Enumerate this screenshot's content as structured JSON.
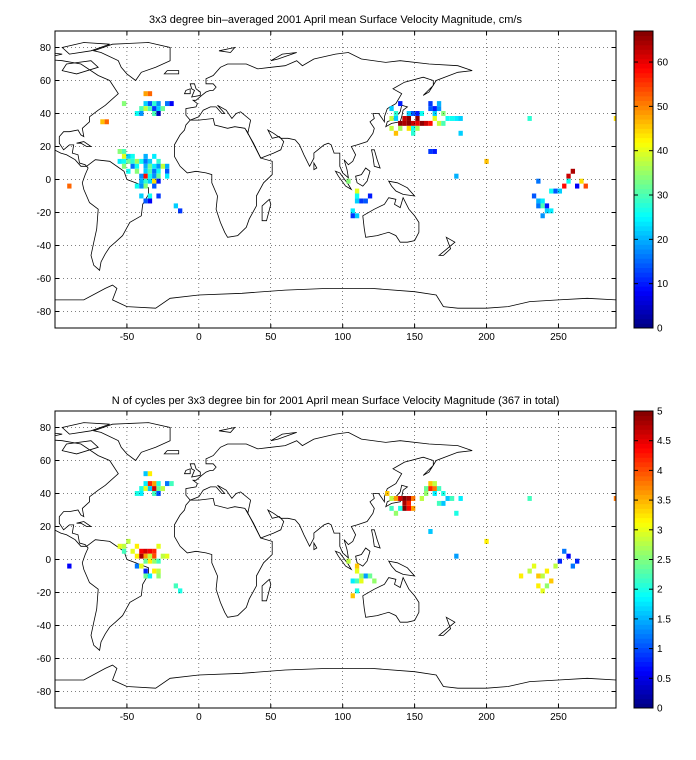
{
  "chart_data": [
    {
      "type": "heatmap",
      "title": "3x3 degree bin–averaged 2001 April mean Surface Velocity Magnitude, cm/s",
      "xlabel": "",
      "ylabel": "",
      "xlim": [
        -100,
        290
      ],
      "ylim": [
        -90,
        90
      ],
      "xticks": [
        -50,
        0,
        50,
        100,
        150,
        200,
        250
      ],
      "yticks": [
        -80,
        -60,
        -40,
        -20,
        0,
        20,
        40,
        60,
        80
      ],
      "grid": true,
      "colormap": "jet",
      "colorbar": {
        "min": 0,
        "max": 67,
        "ticks": [
          0,
          10,
          20,
          30,
          40,
          50,
          60
        ]
      },
      "cells": [
        [
          -90,
          -4,
          52
        ],
        [
          -67,
          35,
          46
        ],
        [
          -64,
          35,
          52
        ],
        [
          -52,
          46,
          34
        ],
        [
          -37,
          52,
          48
        ],
        [
          -34,
          52,
          52
        ],
        [
          -37,
          46,
          22
        ],
        [
          -34,
          46,
          14
        ],
        [
          -31,
          46,
          28
        ],
        [
          -28,
          46,
          18
        ],
        [
          -22,
          46,
          16
        ],
        [
          -19,
          46,
          8
        ],
        [
          -40,
          43,
          30
        ],
        [
          -37,
          43,
          38
        ],
        [
          -34,
          43,
          30
        ],
        [
          -31,
          43,
          12
        ],
        [
          -28,
          43,
          22
        ],
        [
          -25,
          43,
          32
        ],
        [
          -43,
          40,
          26
        ],
        [
          -40,
          40,
          18
        ],
        [
          -31,
          40,
          30
        ],
        [
          -28,
          40,
          4
        ],
        [
          -55,
          17,
          34
        ],
        [
          -52,
          17,
          30
        ],
        [
          -52,
          14,
          40
        ],
        [
          -49,
          14,
          22
        ],
        [
          -46,
          14,
          26
        ],
        [
          -37,
          14,
          20
        ],
        [
          -31,
          14,
          24
        ],
        [
          -55,
          11,
          24
        ],
        [
          -52,
          11,
          26
        ],
        [
          -49,
          11,
          32
        ],
        [
          -46,
          11,
          28
        ],
        [
          -43,
          11,
          36
        ],
        [
          -40,
          11,
          26
        ],
        [
          -37,
          11,
          16
        ],
        [
          -34,
          11,
          22
        ],
        [
          -28,
          11,
          28
        ],
        [
          -52,
          8,
          34
        ],
        [
          -46,
          8,
          16
        ],
        [
          -43,
          8,
          26
        ],
        [
          -37,
          8,
          20
        ],
        [
          -34,
          8,
          32
        ],
        [
          -31,
          8,
          24
        ],
        [
          -28,
          8,
          18
        ],
        [
          -25,
          8,
          38
        ],
        [
          -22,
          8,
          20
        ],
        [
          -49,
          5,
          26
        ],
        [
          -43,
          5,
          34
        ],
        [
          -37,
          5,
          22
        ],
        [
          -34,
          5,
          30
        ],
        [
          -31,
          5,
          16
        ],
        [
          -28,
          5,
          26
        ],
        [
          -22,
          5,
          14
        ],
        [
          -40,
          2,
          18
        ],
        [
          -37,
          2,
          58
        ],
        [
          -34,
          2,
          26
        ],
        [
          -31,
          2,
          18
        ],
        [
          -28,
          2,
          32
        ],
        [
          -22,
          2,
          24
        ],
        [
          -40,
          -1,
          20
        ],
        [
          -37,
          -1,
          28
        ],
        [
          -34,
          -1,
          22
        ],
        [
          -31,
          -1,
          44
        ],
        [
          -28,
          -1,
          10
        ],
        [
          -43,
          -4,
          26
        ],
        [
          -40,
          -4,
          18
        ],
        [
          -37,
          -4,
          34
        ],
        [
          -31,
          -4,
          14
        ],
        [
          -40,
          -10,
          22
        ],
        [
          -34,
          -10,
          26
        ],
        [
          -28,
          -10,
          12
        ],
        [
          -37,
          -13,
          14
        ],
        [
          -34,
          -13,
          8
        ],
        [
          -16,
          -16,
          22
        ],
        [
          -13,
          -19,
          12
        ],
        [
          134,
          43,
          22
        ],
        [
          140,
          46,
          10
        ],
        [
          137,
          40,
          28
        ],
        [
          143,
          37,
          34
        ],
        [
          146,
          40,
          22
        ],
        [
          149,
          40,
          14
        ],
        [
          152,
          40,
          10
        ],
        [
          155,
          40,
          26
        ],
        [
          161,
          43,
          14
        ],
        [
          164,
          43,
          10
        ],
        [
          167,
          43,
          18
        ],
        [
          161,
          46,
          12
        ],
        [
          167,
          46,
          20
        ],
        [
          164,
          40,
          22
        ],
        [
          170,
          40,
          34
        ],
        [
          173,
          37,
          26
        ],
        [
          134,
          37,
          38
        ],
        [
          137,
          37,
          22
        ],
        [
          140,
          34,
          66
        ],
        [
          143,
          34,
          64
        ],
        [
          146,
          34,
          66
        ],
        [
          149,
          34,
          62
        ],
        [
          152,
          34,
          60
        ],
        [
          155,
          34,
          66
        ],
        [
          158,
          34,
          62
        ],
        [
          161,
          34,
          58
        ],
        [
          143,
          37,
          62
        ],
        [
          146,
          37,
          66
        ],
        [
          152,
          37,
          66
        ],
        [
          164,
          37,
          40
        ],
        [
          167,
          34,
          38
        ],
        [
          170,
          34,
          30
        ],
        [
          176,
          37,
          26
        ],
        [
          179,
          37,
          24
        ],
        [
          182,
          37,
          22
        ],
        [
          140,
          31,
          36
        ],
        [
          146,
          31,
          44
        ],
        [
          149,
          31,
          26
        ],
        [
          152,
          31,
          36
        ],
        [
          149,
          28,
          28
        ],
        [
          137,
          28,
          46
        ],
        [
          134,
          31,
          38
        ],
        [
          182,
          28,
          22
        ],
        [
          161,
          17,
          12
        ],
        [
          164,
          17,
          10
        ],
        [
          200,
          11,
          46
        ],
        [
          179,
          2,
          20
        ],
        [
          110,
          -7,
          40
        ],
        [
          110,
          -10,
          26
        ],
        [
          110,
          -13,
          22
        ],
        [
          113,
          -13,
          12
        ],
        [
          116,
          -13,
          14
        ],
        [
          119,
          -10,
          10
        ],
        [
          107,
          -19,
          24
        ],
        [
          110,
          -22,
          22
        ],
        [
          107,
          -22,
          12
        ],
        [
          104,
          -1,
          34
        ],
        [
          233,
          -10,
          14
        ],
        [
          236,
          -13,
          20
        ],
        [
          239,
          -13,
          24
        ],
        [
          236,
          -16,
          16
        ],
        [
          239,
          -16,
          30
        ],
        [
          242,
          -16,
          10
        ],
        [
          245,
          -19,
          24
        ],
        [
          242,
          -19,
          22
        ],
        [
          239,
          -22,
          18
        ],
        [
          245,
          -7,
          26
        ],
        [
          248,
          -7,
          14
        ],
        [
          251,
          -7,
          22
        ],
        [
          254,
          -4,
          58
        ],
        [
          257,
          2,
          62
        ],
        [
          260,
          5,
          64
        ],
        [
          257,
          -1,
          26
        ],
        [
          263,
          -4,
          8
        ],
        [
          266,
          -1,
          44
        ],
        [
          269,
          -4,
          54
        ],
        [
          236,
          -1,
          16
        ],
        [
          230,
          37,
          28
        ],
        [
          290,
          37,
          44
        ]
      ]
    },
    {
      "type": "heatmap",
      "title": "N of cycles per 3x3 degree bin for 2001 April mean Surface Velocity Magnitude (367 in total)",
      "xlabel": "",
      "ylabel": "",
      "xlim": [
        -100,
        290
      ],
      "ylim": [
        -90,
        90
      ],
      "xticks": [
        -50,
        0,
        50,
        100,
        150,
        200,
        250
      ],
      "yticks": [
        -80,
        -60,
        -40,
        -20,
        0,
        20,
        40,
        60,
        80
      ],
      "grid": true,
      "colormap": "jet",
      "colorbar": {
        "min": 0,
        "max": 5,
        "ticks": [
          0,
          0.5,
          1,
          1.5,
          2,
          2.5,
          3,
          3.5,
          4,
          4.5,
          5
        ]
      },
      "cells": [
        [
          -90,
          -4,
          0.6
        ],
        [
          -37,
          52,
          1.6
        ],
        [
          -34,
          52,
          3.2
        ],
        [
          -37,
          46,
          1.8
        ],
        [
          -34,
          46,
          4.2
        ],
        [
          -31,
          46,
          3.6
        ],
        [
          -28,
          46,
          2.0
        ],
        [
          -22,
          46,
          1.2
        ],
        [
          -19,
          46,
          2.2
        ],
        [
          -40,
          43,
          2.0
        ],
        [
          -37,
          43,
          3.0
        ],
        [
          -34,
          43,
          1.6
        ],
        [
          -31,
          43,
          4.6
        ],
        [
          -28,
          43,
          2.4
        ],
        [
          -25,
          43,
          2.8
        ],
        [
          -43,
          40,
          2.0
        ],
        [
          -40,
          40,
          1.8
        ],
        [
          -31,
          40,
          2.2
        ],
        [
          -28,
          40,
          1.0
        ],
        [
          -55,
          8,
          3.0
        ],
        [
          -52,
          8,
          2.8
        ],
        [
          -49,
          11,
          2.8
        ],
        [
          -43,
          8,
          3.2
        ],
        [
          -40,
          5,
          4.4
        ],
        [
          -37,
          5,
          4.6
        ],
        [
          -34,
          5,
          4.4
        ],
        [
          -31,
          5,
          4.2
        ],
        [
          -28,
          8,
          3.0
        ],
        [
          -52,
          5,
          2.2
        ],
        [
          -46,
          5,
          3.0
        ],
        [
          -43,
          2,
          3.2
        ],
        [
          -40,
          2,
          4.8
        ],
        [
          -37,
          2,
          3.6
        ],
        [
          -34,
          2,
          2.8
        ],
        [
          -31,
          2,
          4.0
        ],
        [
          -25,
          2,
          2.8
        ],
        [
          -22,
          2,
          3.0
        ],
        [
          -37,
          -1,
          2.4
        ],
        [
          -34,
          -1,
          3.2
        ],
        [
          -31,
          -1,
          2.6
        ],
        [
          -28,
          -1,
          2.2
        ],
        [
          -43,
          -4,
          1.2
        ],
        [
          -40,
          -4,
          3.0
        ],
        [
          -37,
          -7,
          0.8
        ],
        [
          -31,
          -7,
          3.2
        ],
        [
          -28,
          -7,
          2.8
        ],
        [
          -37,
          -10,
          2.4
        ],
        [
          -34,
          -10,
          1.8
        ],
        [
          -28,
          -10,
          2.6
        ],
        [
          -16,
          -16,
          2.2
        ],
        [
          -13,
          -19,
          2.0
        ],
        [
          131,
          40,
          3.4
        ],
        [
          134,
          37,
          2.8
        ],
        [
          137,
          37,
          3.6
        ],
        [
          140,
          37,
          4.6
        ],
        [
          143,
          37,
          5.0
        ],
        [
          146,
          37,
          4.8
        ],
        [
          149,
          37,
          3.8
        ],
        [
          143,
          34,
          4.8
        ],
        [
          146,
          34,
          4.2
        ],
        [
          143,
          31,
          5.0
        ],
        [
          146,
          31,
          4.4
        ],
        [
          140,
          31,
          2.0
        ],
        [
          149,
          31,
          3.6
        ],
        [
          134,
          31,
          2.2
        ],
        [
          137,
          28,
          2.6
        ],
        [
          158,
          43,
          2.4
        ],
        [
          161,
          43,
          4.2
        ],
        [
          164,
          43,
          3.8
        ],
        [
          167,
          43,
          2.2
        ],
        [
          161,
          46,
          3.4
        ],
        [
          164,
          46,
          2.8
        ],
        [
          158,
          40,
          2.6
        ],
        [
          164,
          40,
          1.8
        ],
        [
          170,
          40,
          2.0
        ],
        [
          173,
          37,
          1.6
        ],
        [
          176,
          37,
          2.2
        ],
        [
          182,
          37,
          1.8
        ],
        [
          155,
          37,
          2.8
        ],
        [
          167,
          34,
          2.2
        ],
        [
          170,
          34,
          1.6
        ],
        [
          179,
          28,
          2.0
        ],
        [
          161,
          17,
          1.6
        ],
        [
          200,
          11,
          3.2
        ],
        [
          179,
          2,
          1.4
        ],
        [
          104,
          -1,
          2.8
        ],
        [
          110,
          -4,
          3.4
        ],
        [
          110,
          -7,
          3.0
        ],
        [
          113,
          -10,
          2.6
        ],
        [
          116,
          -10,
          1.4
        ],
        [
          119,
          -10,
          2.4
        ],
        [
          107,
          -13,
          1.8
        ],
        [
          110,
          -13,
          2.2
        ],
        [
          113,
          -13,
          3.0
        ],
        [
          107,
          -22,
          3.4
        ],
        [
          110,
          -19,
          2.0
        ],
        [
          122,
          -13,
          2.6
        ],
        [
          224,
          -10,
          3.2
        ],
        [
          230,
          -7,
          2.8
        ],
        [
          233,
          -4,
          3.0
        ],
        [
          236,
          -10,
          3.4
        ],
        [
          239,
          -10,
          2.8
        ],
        [
          236,
          -16,
          3.2
        ],
        [
          239,
          -19,
          3.0
        ],
        [
          242,
          -16,
          2.6
        ],
        [
          245,
          -13,
          3.4
        ],
        [
          242,
          -7,
          3.2
        ],
        [
          248,
          -4,
          2.8
        ],
        [
          251,
          -1,
          0.8
        ],
        [
          254,
          5,
          1.2
        ],
        [
          257,
          2,
          0.6
        ],
        [
          260,
          -4,
          1.2
        ],
        [
          263,
          -1,
          0.8
        ],
        [
          230,
          37,
          2.2
        ],
        [
          290,
          37,
          3.8
        ]
      ]
    }
  ]
}
